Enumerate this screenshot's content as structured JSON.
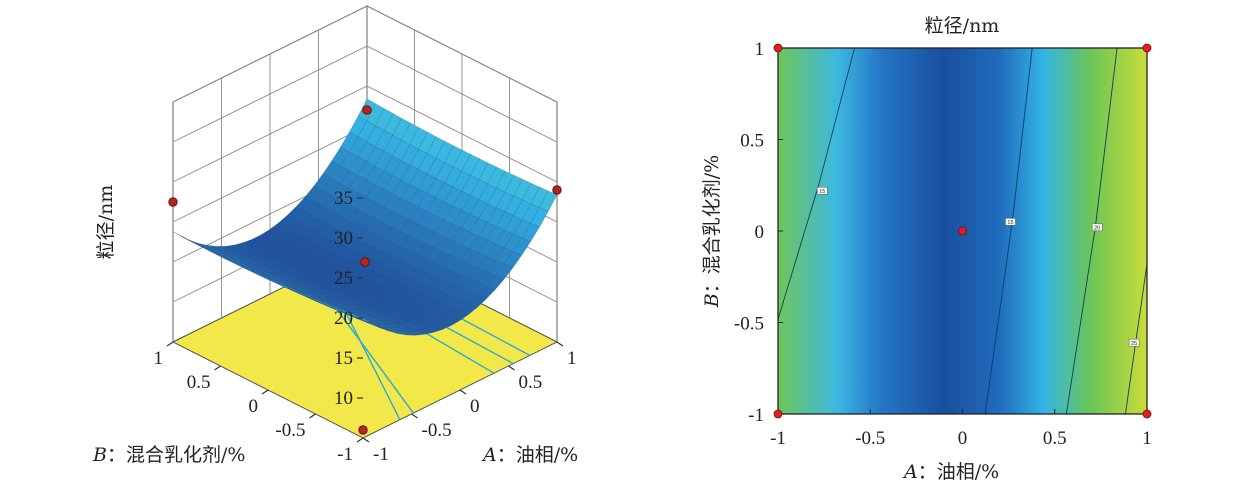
{
  "chart_data": [
    {
      "type": "surface3d",
      "title": "",
      "zlabel": "粒径/nm",
      "xlabel_prefix": "A",
      "xlabel": "：油相/%",
      "ylabel_prefix": "B",
      "ylabel": "：混合乳化剂/%",
      "x_range": [
        -1,
        1
      ],
      "y_range": [
        -1,
        1
      ],
      "z_range": [
        5,
        35
      ],
      "z_ticks": [
        "10",
        "15",
        "20",
        "25",
        "30",
        "35"
      ],
      "x_ticks": [
        "-1",
        "-0.5",
        "0",
        "0.5",
        "1"
      ],
      "y_ticks": [
        "-1",
        "-0.5",
        "0",
        "0.5",
        "1"
      ],
      "surface_model": {
        "intercept": 13.0,
        "A": 2.0,
        "B": -0.3,
        "A2": 8.0,
        "B2": 0.4,
        "AB": 0.3
      },
      "design_points": [
        {
          "A": -1,
          "B": 1,
          "z": 22.5
        },
        {
          "A": 1,
          "B": -1,
          "z": 24.0
        },
        {
          "A": 0,
          "B": 0,
          "z": 15.0
        },
        {
          "A": 1,
          "B": 1,
          "z": 22.0
        },
        {
          "A": -1,
          "B": -1,
          "z": 6.0
        }
      ],
      "colors": {
        "low": "#1f4e9c",
        "mid": "#35b8e8",
        "high": "#9bd34a",
        "floor": "#f2e84a",
        "point": "#b3261e"
      }
    },
    {
      "type": "contour",
      "title": "粒径/nm",
      "xlabel_prefix": "A",
      "xlabel": "：油相/%",
      "ylabel_prefix": "B",
      "ylabel": "：混合乳化剂/%",
      "x_ticks": [
        "-1",
        "-0.5",
        "0",
        "0.5",
        "1"
      ],
      "y_ticks": [
        "-1",
        "-0.5",
        "0",
        "0.5",
        "1"
      ],
      "xlim": [
        -1,
        1
      ],
      "ylim": [
        -1,
        1
      ],
      "contour_labels": [
        "15",
        "15",
        "20",
        "25"
      ],
      "design_points": [
        {
          "A": -1,
          "B": 1
        },
        {
          "A": 1,
          "B": 1
        },
        {
          "A": 0,
          "B": 0
        },
        {
          "A": -1,
          "B": -1
        },
        {
          "A": 1,
          "B": -1
        }
      ],
      "colors": {
        "low": "#1d4f9e",
        "mid": "#32bde9",
        "high": "#8fd03c",
        "top": "#e0e544",
        "point": "#e02020"
      }
    }
  ]
}
